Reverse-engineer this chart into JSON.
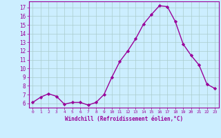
{
  "x": [
    0,
    1,
    2,
    3,
    4,
    5,
    6,
    7,
    8,
    9,
    10,
    11,
    12,
    13,
    14,
    15,
    16,
    17,
    18,
    19,
    20,
    21,
    22,
    23
  ],
  "y": [
    6.1,
    6.7,
    7.1,
    6.8,
    5.9,
    6.1,
    6.1,
    5.8,
    6.1,
    7.0,
    9.0,
    10.8,
    12.0,
    13.4,
    15.1,
    16.2,
    17.2,
    17.1,
    15.4,
    12.8,
    11.5,
    10.4,
    8.2,
    7.7
  ],
  "line_color": "#990099",
  "marker": "D",
  "marker_size": 2.2,
  "background_color": "#cceeff",
  "grid_color": "#aacccc",
  "xlabel": "Windchill (Refroidissement éolien,°C)",
  "ylim": [
    5.5,
    17.7
  ],
  "xlim": [
    -0.5,
    23.5
  ],
  "yticks": [
    6,
    7,
    8,
    9,
    10,
    11,
    12,
    13,
    14,
    15,
    16,
    17
  ],
  "xticks": [
    0,
    1,
    2,
    3,
    4,
    5,
    6,
    7,
    8,
    9,
    10,
    11,
    12,
    13,
    14,
    15,
    16,
    17,
    18,
    19,
    20,
    21,
    22,
    23
  ],
  "tick_color": "#990099",
  "label_color": "#990099",
  "axis_line_color": "#990099",
  "line_width": 1.0
}
